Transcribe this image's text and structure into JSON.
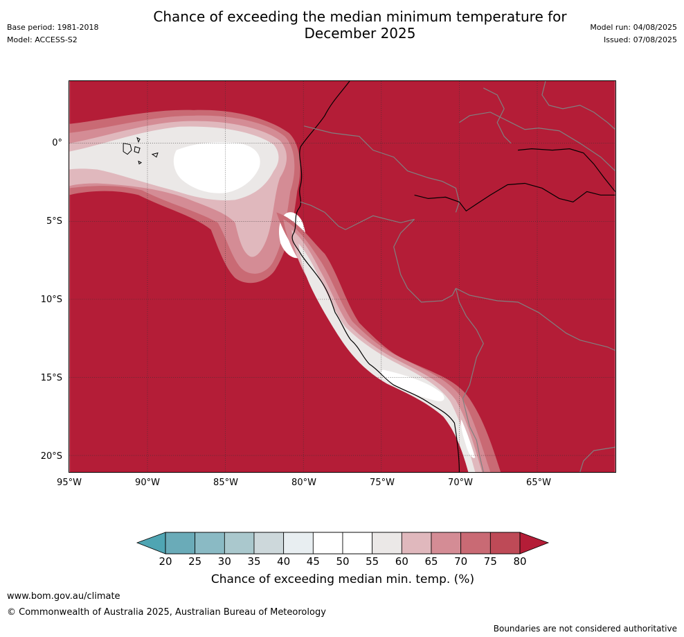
{
  "header": {
    "base_period": "Base period: 1981-2018",
    "model": "Model: ACCESS-S2",
    "title_line1": "Chance of exceeding the median minimum temperature for",
    "title_line2": "December 2025",
    "model_run": "Model run: 04/08/2025",
    "issued": "Issued: 07/08/2025"
  },
  "map": {
    "lat_labels": [
      "0°",
      "5°S",
      "10°S",
      "15°S",
      "20°S"
    ],
    "lon_labels": [
      "95°W",
      "90°W",
      "85°W",
      "80°W",
      "75°W",
      "70°W",
      "65°W"
    ],
    "background_color": "#b41d37",
    "coast_color": "#000000",
    "border_color": "#808080"
  },
  "colorbar": {
    "ticks": [
      "20",
      "25",
      "30",
      "35",
      "40",
      "45",
      "50",
      "55",
      "60",
      "65",
      "70",
      "75",
      "80"
    ],
    "colors": [
      "#6aabb8",
      "#8abac4",
      "#aac8cd",
      "#cdd8db",
      "#e8eef1",
      "#ffffff",
      "#ffffff",
      "#ebe8e7",
      "#e0b8bd",
      "#d48c95",
      "#c96a74",
      "#be4a57"
    ],
    "low_extend_color": "#4fa5b3",
    "high_extend_color": "#b41d37",
    "label": "Chance of exceeding median min. temp. (%)"
  },
  "footer": {
    "url": "www.bom.gov.au/climate",
    "copyright": "© Commonwealth of Australia 2025, Australian Bureau of Meteorology",
    "disclaimer": "Boundaries are not considered authoritative"
  }
}
